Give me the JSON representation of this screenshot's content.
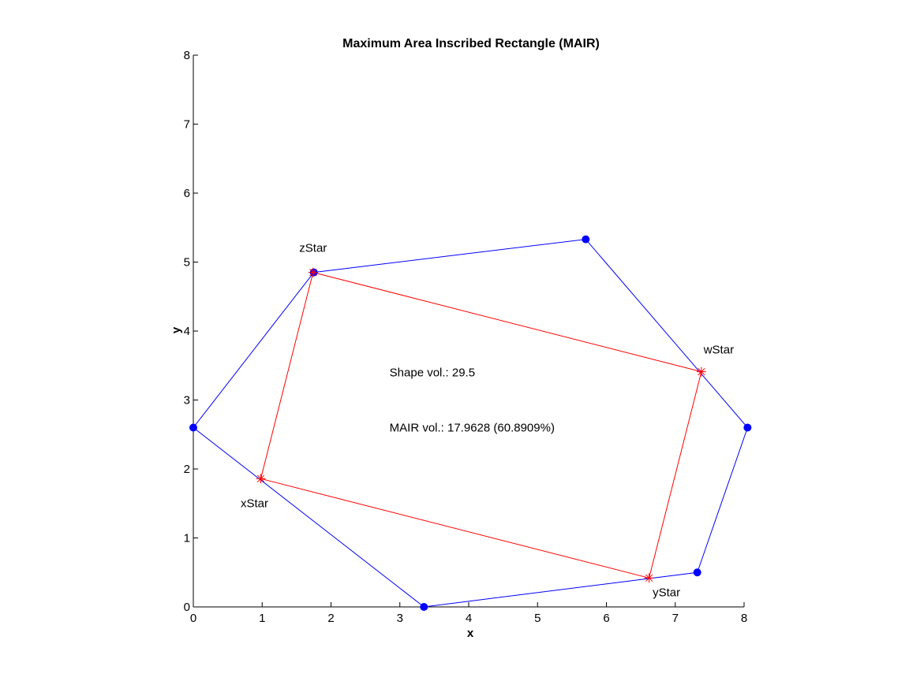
{
  "chart_data": {
    "type": "scatter",
    "title": "Maximum Area Inscribed Rectangle (MAIR)",
    "xlabel": "x",
    "ylabel": "y",
    "xlim": [
      0,
      8
    ],
    "ylim": [
      0,
      8
    ],
    "xticks": [
      0,
      1,
      2,
      3,
      4,
      5,
      6,
      7,
      8
    ],
    "yticks": [
      0,
      1,
      2,
      3,
      4,
      5,
      6,
      7,
      8
    ],
    "grid": false,
    "series": [
      {
        "kind": "polygon",
        "color": "#0000ff",
        "marker": "filled-circle",
        "points": [
          {
            "x": 0,
            "y": 2.6
          },
          {
            "x": 1.75,
            "y": 4.85
          },
          {
            "x": 5.7,
            "y": 5.33
          },
          {
            "x": 8.05,
            "y": 2.6
          },
          {
            "x": 7.32,
            "y": 0.5
          },
          {
            "x": 3.35,
            "y": 0
          }
        ]
      },
      {
        "kind": "rectangle",
        "color": "#ff0000",
        "marker": "asterisk",
        "points": [
          {
            "x": 0.98,
            "y": 1.86,
            "label": "xStar"
          },
          {
            "x": 6.62,
            "y": 0.42,
            "label": "yStar"
          },
          {
            "x": 7.38,
            "y": 3.41,
            "label": "wStar"
          },
          {
            "x": 1.74,
            "y": 4.85,
            "label": "zStar"
          }
        ]
      }
    ],
    "annotations": [
      {
        "text": "Shape vol.: 29.5",
        "x": 2.85,
        "y": 3.4
      },
      {
        "text": "MAIR vol.: 17.9628 (60.8909%)",
        "x": 2.85,
        "y": 2.6
      }
    ]
  }
}
